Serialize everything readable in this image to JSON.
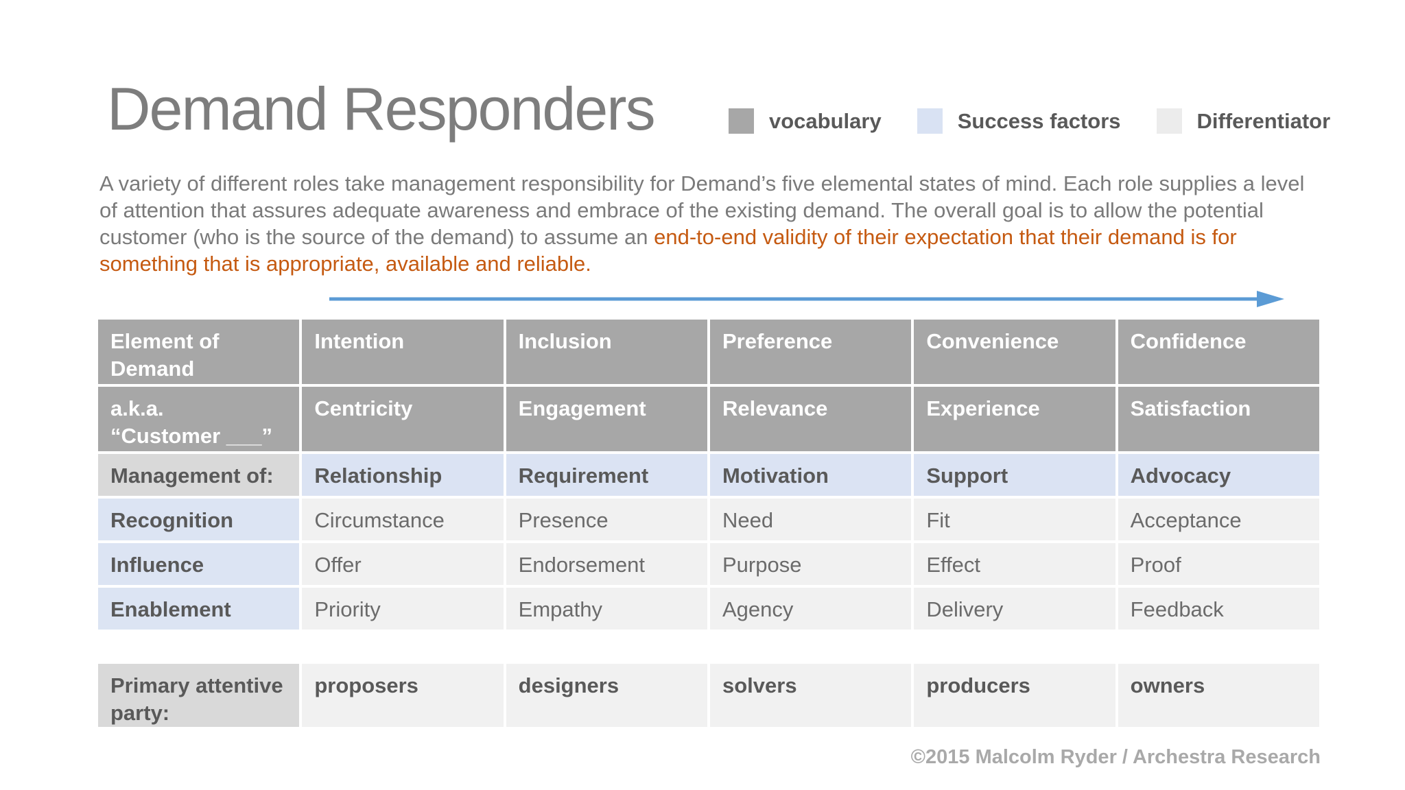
{
  "slide": {
    "title": "Demand Responders",
    "footer": "©2015 Malcolm Ryder / Archestra Research"
  },
  "legend": {
    "items": [
      {
        "label": "vocabulary",
        "color": "#a7a7a7"
      },
      {
        "label": "Success factors",
        "color": "#d9e2f3"
      },
      {
        "label": "Differentiator",
        "color": "#ececec"
      }
    ]
  },
  "intro": {
    "lead": "A variety of different roles take management responsibility for Demand’s five elemental states of mind. Each role supplies a level of attention that assures adequate awareness and embrace of the existing demand.  The overall goal is to allow the potential customer (who is the source of the demand) to assume an ",
    "highlight": "end-to-end validity of their expectation that their demand is for something that is appropriate, available and reliable.",
    "highlight_color": "#c55a11"
  },
  "arrow": {
    "color": "#5b9bd5"
  },
  "main_table": {
    "rows": [
      {
        "kind": "vocab",
        "cells": [
          "Element of\nDemand",
          "Intention",
          "Inclusion",
          "Preference",
          "Convenience",
          "Confidence"
        ]
      },
      {
        "kind": "vocab",
        "cells": [
          "a.k.a.\n“Customer ___”",
          "Centricity",
          "Engagement",
          "Relevance",
          "Experience",
          "Satisfaction"
        ]
      },
      {
        "kind": "mgmt",
        "cells": [
          "Management of:",
          "Relationship",
          "Requirement",
          "Motivation",
          "Support",
          "Advocacy"
        ]
      },
      {
        "kind": "elem",
        "cells": [
          "Recognition",
          "Circumstance",
          "Presence",
          "Need",
          "Fit",
          "Acceptance"
        ]
      },
      {
        "kind": "elem",
        "cells": [
          "Influence",
          "Offer",
          "Endorsement",
          "Purpose",
          "Effect",
          "Proof"
        ]
      },
      {
        "kind": "elem",
        "cells": [
          "Enablement",
          "Priority",
          "Empathy",
          "Agency",
          "Delivery",
          "Feedback"
        ]
      }
    ]
  },
  "party_table": {
    "rows": [
      {
        "kind": "party",
        "cells": [
          "Primary attentive\nparty:",
          "proposers",
          "designers",
          "solvers",
          "producers",
          "owners"
        ]
      }
    ]
  }
}
